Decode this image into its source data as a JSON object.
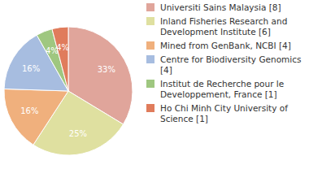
{
  "chart_data": {
    "type": "pie",
    "categories": [
      "Universiti Sains Malaysia [8]",
      "Inland Fisheries Research and Development Institute [6]",
      "Mined from GenBank, NCBI [4]",
      "Centre for Biodiversity Genomics [4]",
      "Institut de Recherche pour le Developpement, France [1]",
      "Ho Chi Minh City University of Science [1]"
    ],
    "values": [
      33,
      25,
      16,
      16,
      4,
      4
    ],
    "value_labels": [
      "33%",
      "25%",
      "16%",
      "16%",
      "4%",
      "4%"
    ],
    "colors": [
      "#e0a59b",
      "#dfe0a0",
      "#f0b07d",
      "#a7bde0",
      "#9fc780",
      "#e07c5c"
    ],
    "data_labels": true
  }
}
